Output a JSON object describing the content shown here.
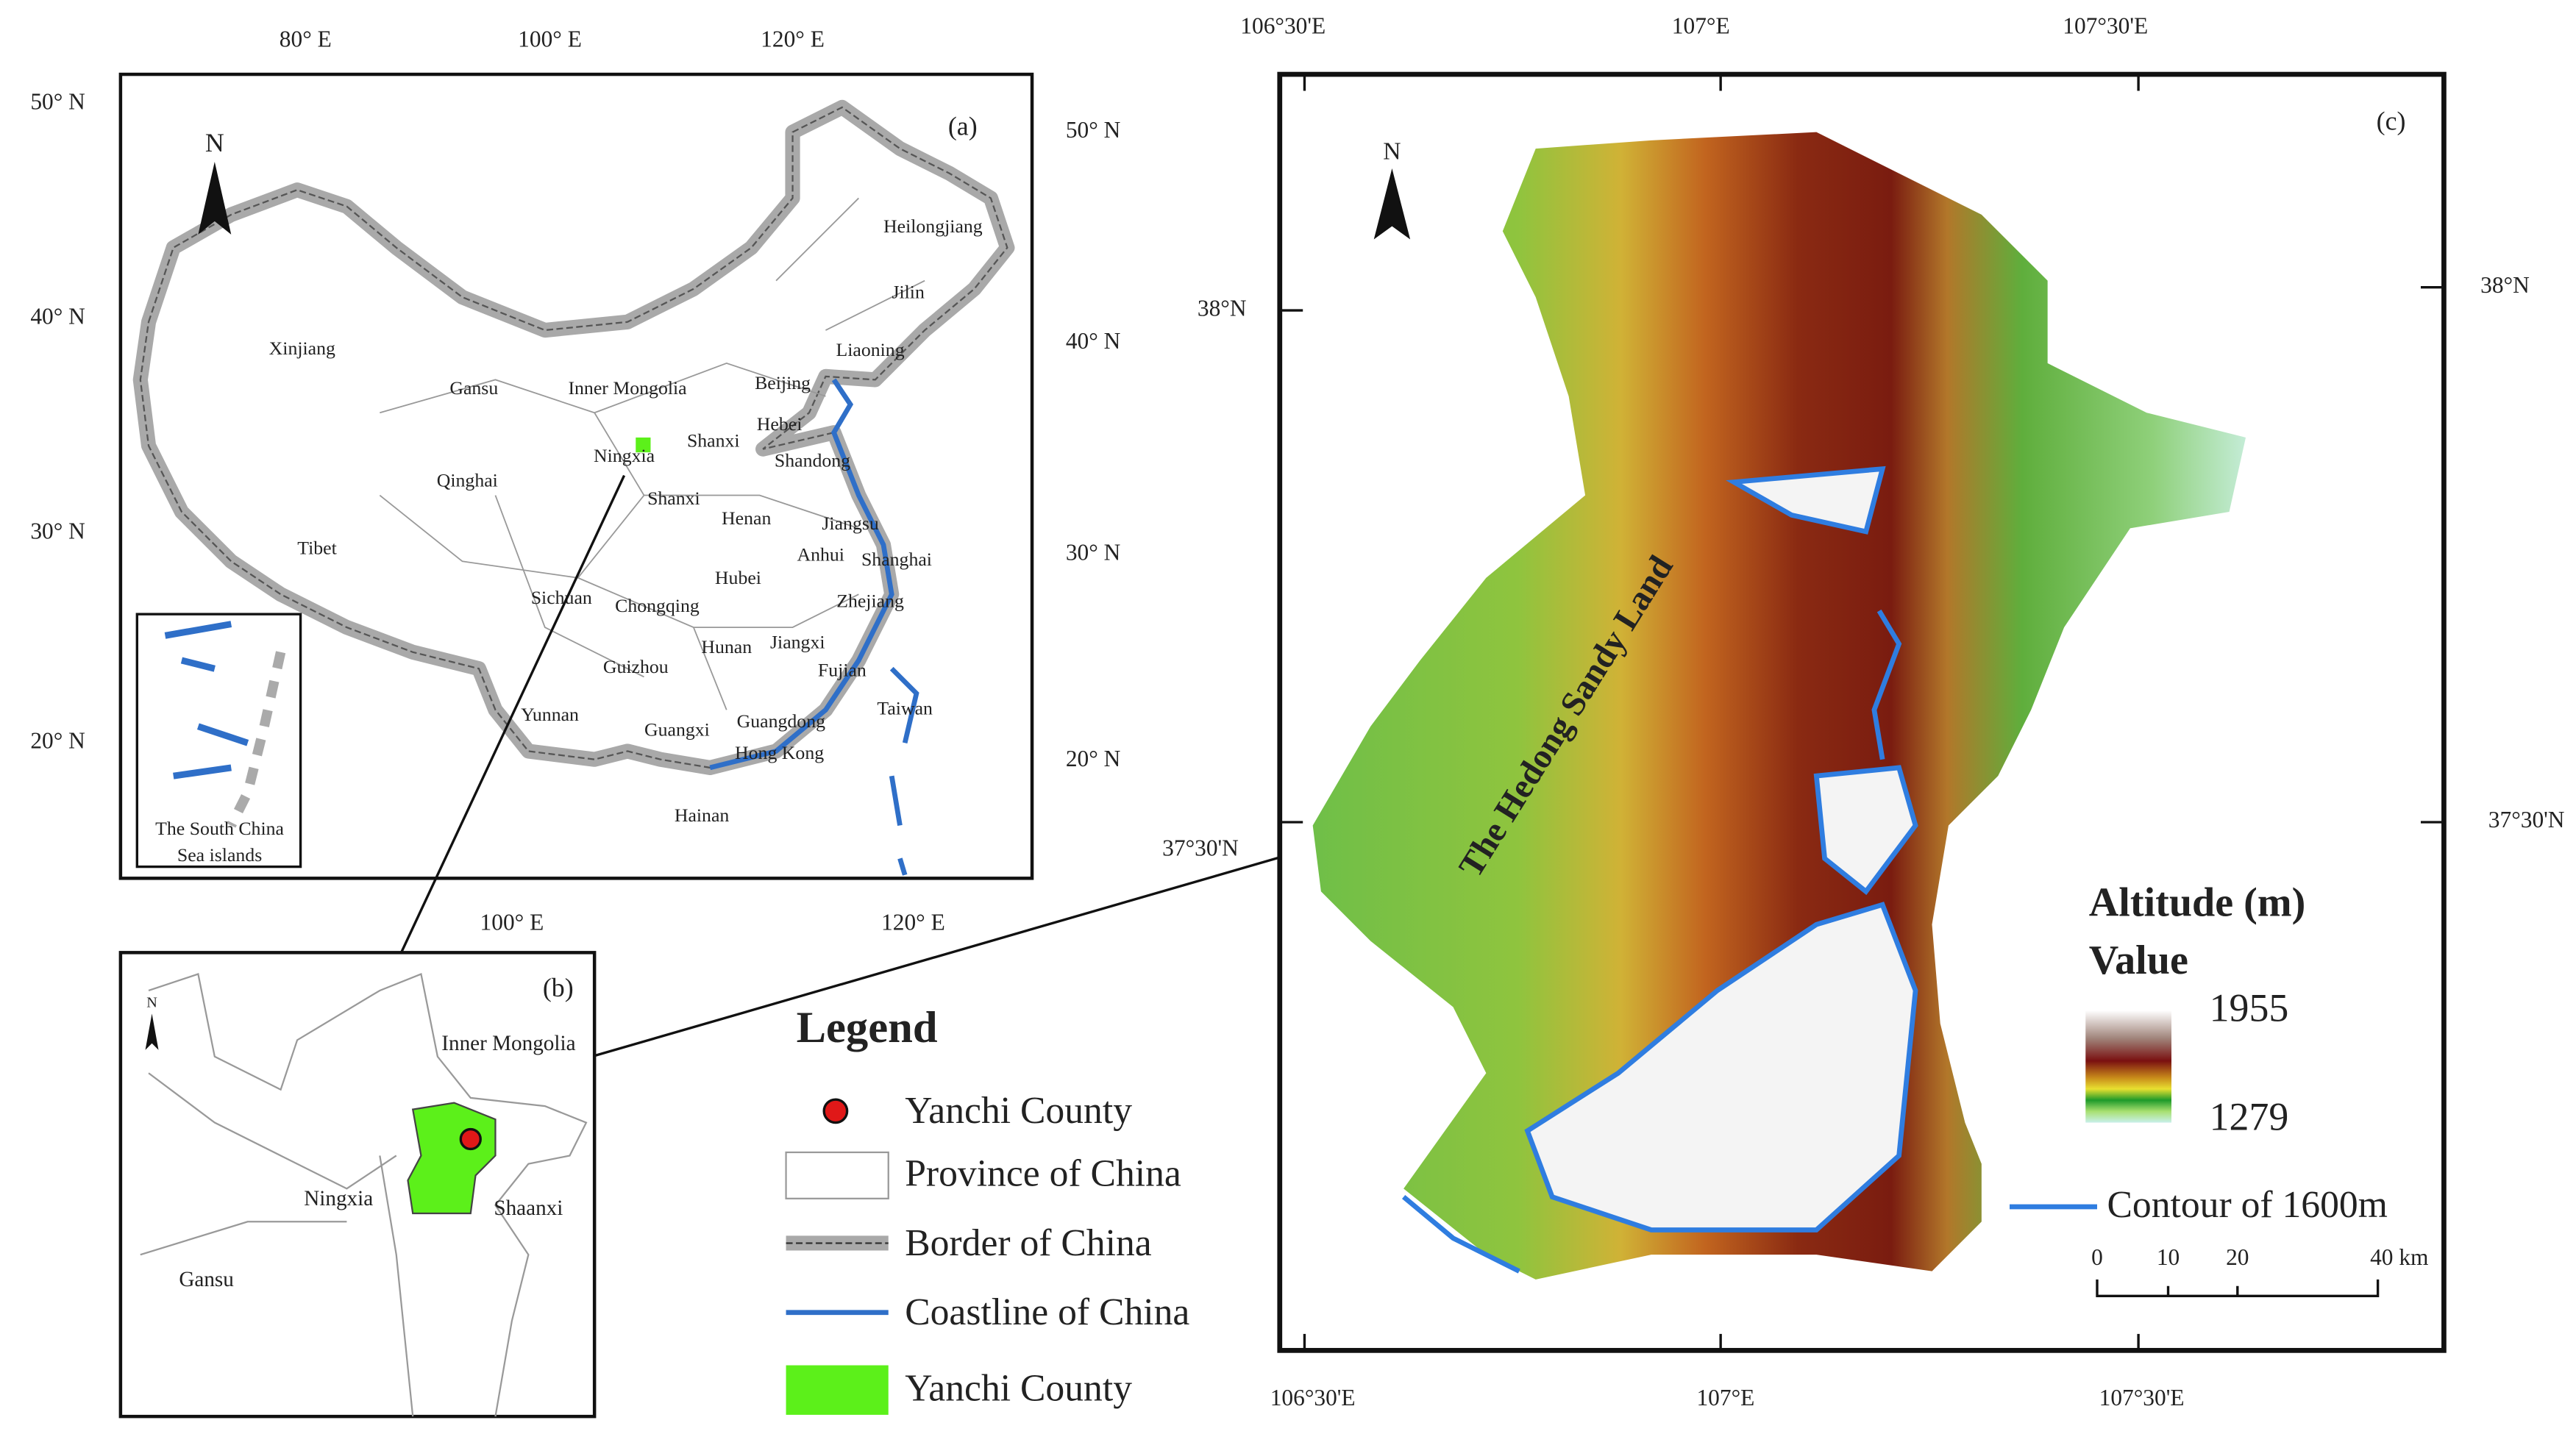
{
  "panel_a": {
    "label": "(a)",
    "north": "N",
    "top_ticks": [
      "80° E",
      "100° E",
      "120° E"
    ],
    "left_ticks": [
      "50° N",
      "40° N",
      "30° N",
      "20° N"
    ],
    "right_ticks": [
      "50° N",
      "40° N",
      "30° N",
      "20° N"
    ],
    "bottom_ticks": [
      "100° E",
      "120° E"
    ],
    "provinces": [
      "Heilongjiang",
      "Jilin",
      "Liaoning",
      "Xinjiang",
      "Gansu",
      "Inner Mongolia",
      "Beijing",
      "Hebei",
      "Shanxi",
      "Shandong",
      "Ningxia",
      "Qinghai",
      "Shanxi",
      "Tibet",
      "Henan",
      "Jiangsu",
      "Anhui",
      "Shanghai",
      "Hubei",
      "Sichuan",
      "Chongqing",
      "Zhejiang",
      "Hunan",
      "Jiangxi",
      "Fujian",
      "Guizhou",
      "Taiwan",
      "Yunnan",
      "Guangxi",
      "Guangdong",
      "Hong Kong",
      "Hainan"
    ],
    "inset_label": [
      "The South China",
      "Sea islands"
    ]
  },
  "panel_b": {
    "label": "(b)",
    "north": "N",
    "regions": [
      "Inner Mongolia",
      "Ningxia",
      "Shaanxi",
      "Gansu"
    ]
  },
  "legend": {
    "title": "Legend",
    "items": [
      "Yanchi County",
      "Province of China",
      "Border of China",
      "Coastline of China",
      "Yanchi County"
    ]
  },
  "panel_c": {
    "label": "(c)",
    "north": "N",
    "top_ticks": [
      "106°30'E",
      "107°E",
      "107°30'E"
    ],
    "bottom_ticks": [
      "106°30'E",
      "107°E",
      "107°30'E"
    ],
    "left_ticks": [
      "38°N",
      "37°30'N"
    ],
    "right_ticks": [
      "38°N",
      "37°30'N"
    ],
    "area_label": "The Hedong Sandy Land",
    "altitude_title": "Altitude (m)",
    "value_title": "Value",
    "altitude_max": 1955,
    "altitude_min": 1279,
    "contour_label": "Contour of 1600m",
    "scale_bar": [
      "0",
      "10",
      "20",
      "40 km"
    ]
  }
}
